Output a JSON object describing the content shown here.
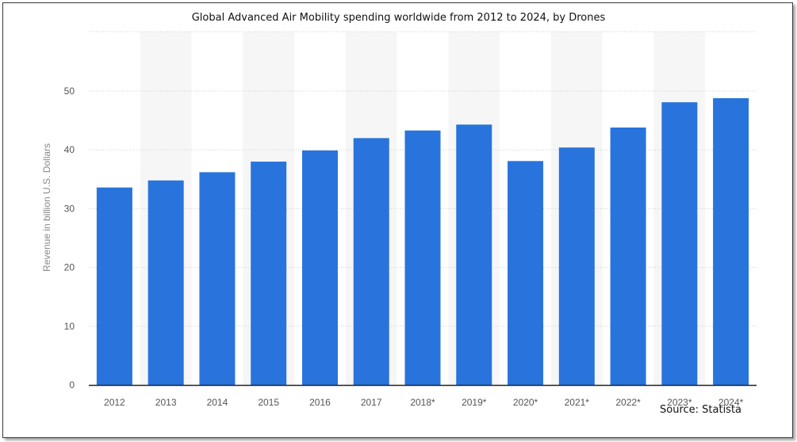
{
  "colors": {
    "bar": "#2874dc",
    "band": "#f6f6f6",
    "grid": "#cfcfcf",
    "axis": "#222222"
  },
  "chart_data": {
    "type": "bar",
    "title": "Global Advanced Air Mobility spending worldwide from 2012 to 2024, by Drones",
    "xlabel": "",
    "ylabel": "Revenue in billion U.S. Dollars",
    "ylim": [
      0,
      50
    ],
    "yticks": [
      0,
      10,
      20,
      30,
      40,
      50
    ],
    "grid": true,
    "categories": [
      "2012",
      "2013",
      "2014",
      "2015",
      "2016",
      "2017",
      "2018*",
      "2019*",
      "2020*",
      "2021*",
      "2022*",
      "2023*",
      "2024*"
    ],
    "values": [
      33.6,
      34.8,
      36.2,
      38.0,
      39.9,
      42.0,
      43.3,
      44.3,
      38.1,
      40.4,
      43.8,
      48.1,
      48.8
    ]
  },
  "source": "Source: Statista"
}
